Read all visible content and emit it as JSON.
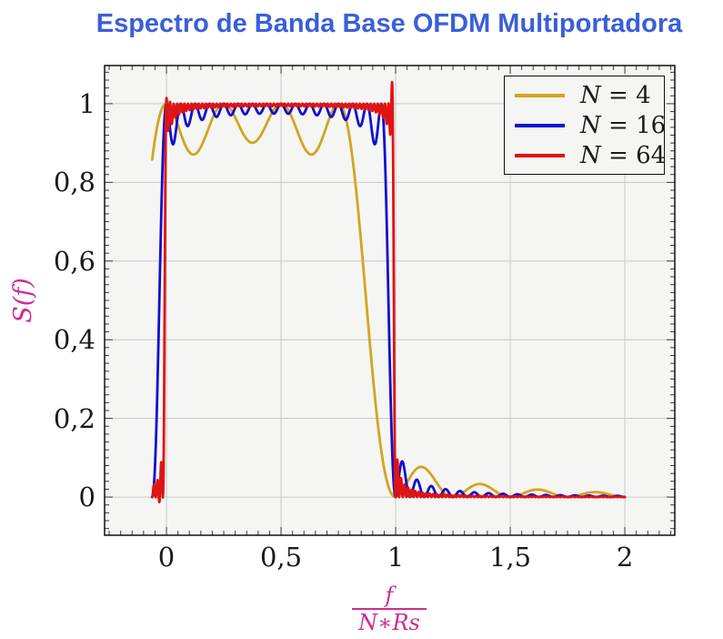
{
  "figure": {
    "background": "#FFFFFF"
  },
  "title": {
    "text": "Espectro de Banda Base OFDM Multiportadora",
    "color": "#3A5FD8"
  },
  "chart_data": {
    "type": "line",
    "title": "Espectro de Banda Base OFDM Multiportadora",
    "xlabel": "f / (N∗Rs)",
    "xlabel_numerator": "f",
    "xlabel_denominator": "N∗Rs",
    "ylabel": "S(f)",
    "x_axis": {
      "min": -0.27,
      "max": 2.218,
      "major_ticks": [
        0,
        0.5,
        1,
        1.5,
        2
      ],
      "tick_labels": [
        "0",
        "0,5",
        "1",
        "1,5",
        "2"
      ],
      "minor_step": 0.05,
      "grid": true
    },
    "y_axis": {
      "min": -0.097,
      "max": 1.097,
      "major_ticks": [
        0,
        0.2,
        0.4,
        0.6,
        0.8,
        1
      ],
      "tick_labels": [
        "0",
        "0,2",
        "0,4",
        "0,6",
        "0,8",
        "1"
      ],
      "minor_step": 0.02,
      "grid": true
    },
    "legend": {
      "position": "top-right"
    },
    "series": [
      {
        "label": "N = 4",
        "label_var": "N",
        "label_eq": "=",
        "label_val": "4",
        "color": "#D2A51F",
        "N": 4,
        "model": "sum_sinc_squared",
        "x_start": -0.0625,
        "x_end": 2.0,
        "overshoots": [],
        "key_points": [
          [
            -0.065,
            0.92
          ],
          [
            0,
            1.0
          ],
          [
            0.125,
            0.87
          ],
          [
            0.25,
            1.0
          ],
          [
            0.375,
            0.88
          ],
          [
            0.5,
            1.0
          ],
          [
            0.625,
            0.87
          ],
          [
            0.72,
            0.99
          ],
          [
            0.875,
            0.46
          ],
          [
            1.0,
            0.01
          ],
          [
            1.125,
            0.07
          ],
          [
            1.25,
            0.01
          ],
          [
            1.375,
            0.035
          ],
          [
            1.5,
            0.006
          ],
          [
            1.625,
            0.02
          ],
          [
            1.75,
            0.005
          ],
          [
            1.875,
            0.013
          ],
          [
            2.0,
            0.003
          ]
        ]
      },
      {
        "label": "N = 16",
        "label_var": "N",
        "label_eq": "=",
        "label_val": "16",
        "color": "#1010CE",
        "N": 16,
        "model": "sum_sinc_squared",
        "x_start": -0.0625,
        "x_end": 2.0,
        "overshoots": [],
        "key_points": [
          [
            -0.06,
            0.08
          ],
          [
            0,
            0.99
          ],
          [
            0.02,
            0.9
          ],
          [
            0.0625,
            0.99
          ],
          [
            0.25,
            0.97
          ],
          [
            0.5,
            1.0
          ],
          [
            0.75,
            0.97
          ],
          [
            0.9,
            0.88
          ],
          [
            0.9375,
            1.0
          ],
          [
            0.97,
            0.5
          ],
          [
            1.0,
            0.02
          ],
          [
            1.03,
            0.08
          ],
          [
            1.09,
            0.04
          ],
          [
            1.22,
            0.02
          ],
          [
            1.5,
            0.008
          ],
          [
            2.0,
            0.003
          ]
        ]
      },
      {
        "label": "N = 64",
        "label_var": "N",
        "label_eq": "=",
        "label_val": "64",
        "color": "#DF1414",
        "N": 64,
        "model": "sum_sinc_squared",
        "x_start": -0.0625,
        "x_end": 2.0,
        "overshoots": [
          {
            "x": -0.03,
            "amp": -0.013,
            "w": 0.009
          },
          {
            "x": 0.006,
            "amp": 0.03,
            "w": 0.007
          },
          {
            "x": 0.984,
            "amp": 0.055,
            "w": 0.007
          }
        ],
        "key_points": [
          [
            -0.04,
            -0.01
          ],
          [
            0.006,
            1.02
          ],
          [
            0.1,
            0.99
          ],
          [
            0.5,
            0.995
          ],
          [
            0.9,
            0.99
          ],
          [
            0.985,
            1.045
          ],
          [
            1.0,
            0.2
          ],
          [
            1.02,
            0.03
          ],
          [
            1.06,
            0.01
          ],
          [
            1.5,
            0.004
          ],
          [
            2.0,
            0.002
          ]
        ]
      }
    ],
    "styles": {
      "plot_bg": "#F5F5F3",
      "grid_color": "#C9C9C9",
      "axis_color": "#000000",
      "tick_color": "#3a3a3a",
      "tick_label_color": "#1A1A1A",
      "accent_magenta": "#CE2B94",
      "title_color": "#3A5FD8",
      "legend_bg": "#F5F5F3",
      "line_width": 2.8
    }
  }
}
